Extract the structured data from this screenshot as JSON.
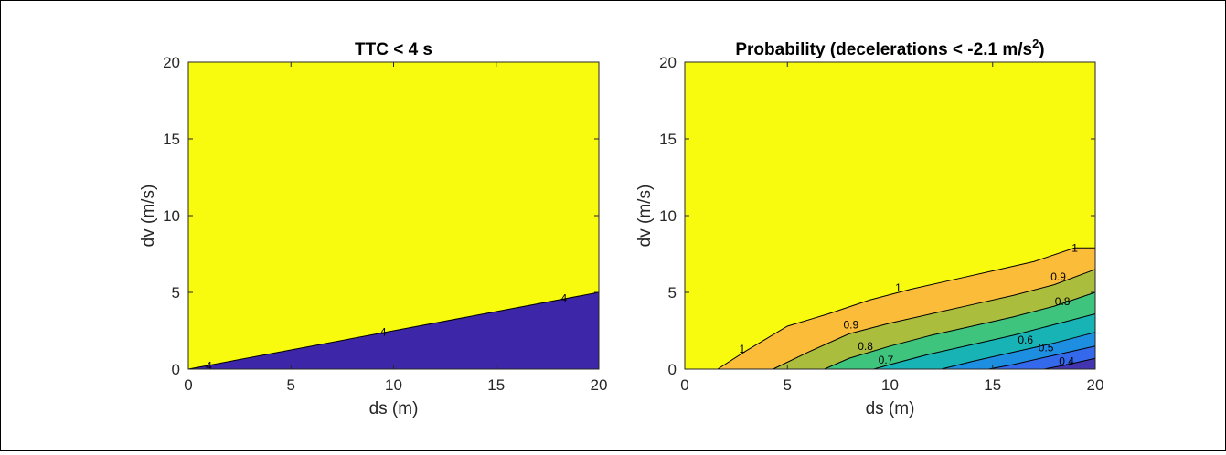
{
  "chart_data": [
    {
      "type": "contour",
      "title": "TTC < 4 s",
      "xlabel": "ds (m)",
      "ylabel": "dv (m/s)",
      "xlim": [
        0,
        20
      ],
      "ylim": [
        0,
        20
      ],
      "xticks": [
        0,
        5,
        10,
        15,
        20
      ],
      "yticks": [
        0,
        5,
        10,
        15,
        20
      ],
      "colors": {
        "region_above": "#f9fb0e",
        "region_below": "#3e26a8"
      },
      "boundary": {
        "x": [
          0,
          20
        ],
        "y": [
          0,
          5
        ]
      },
      "contour_labels": [
        {
          "text": "4",
          "x": 1.0,
          "y": 0.2
        },
        {
          "text": "4",
          "x": 9.5,
          "y": 2.4
        },
        {
          "text": "4",
          "x": 18.3,
          "y": 4.6
        }
      ]
    },
    {
      "type": "contour",
      "title_main": "Probability (decelerations < -2.1 m/s",
      "title_sup": "2",
      "title_end": ")",
      "xlabel": "ds (m)",
      "ylabel": "dv (m/s)",
      "xlim": [
        0,
        20
      ],
      "ylim": [
        0,
        20
      ],
      "xticks": [
        0,
        5,
        10,
        15,
        20
      ],
      "yticks": [
        0,
        5,
        10,
        15,
        20
      ],
      "background_color": "#f9fb0e",
      "levels": [
        {
          "value": 1.0,
          "color": "#fbbc3a",
          "x": [
            1.6,
            3,
            5,
            7,
            9,
            11,
            13,
            15,
            17,
            19,
            20
          ],
          "y": [
            0,
            1.2,
            2.8,
            3.6,
            4.5,
            5.2,
            5.8,
            6.4,
            7.0,
            7.9,
            7.9
          ]
        },
        {
          "value": 0.9,
          "color": "#abbd3c",
          "x": [
            4.3,
            6,
            8,
            10,
            12,
            14,
            16,
            18,
            20
          ],
          "y": [
            0,
            1.1,
            2.3,
            3.0,
            3.6,
            4.2,
            4.8,
            5.5,
            6.5
          ]
        },
        {
          "value": 0.8,
          "color": "#3fc47e",
          "x": [
            6.8,
            8,
            10,
            12,
            14,
            16,
            18,
            20
          ],
          "y": [
            0,
            0.7,
            1.5,
            2.2,
            2.8,
            3.4,
            4.1,
            5.0
          ]
        },
        {
          "value": 0.7,
          "color": "#17b3b5",
          "x": [
            9.2,
            10,
            12,
            14,
            16,
            18,
            20
          ],
          "y": [
            0,
            0.3,
            1.0,
            1.6,
            2.2,
            2.9,
            3.6
          ]
        },
        {
          "value": 0.6,
          "color": "#1e8fe0",
          "x": [
            12.5,
            14,
            16,
            18,
            20
          ],
          "y": [
            0,
            0.5,
            1.1,
            1.7,
            2.4
          ]
        },
        {
          "value": 0.5,
          "color": "#3569ec",
          "x": [
            14.8,
            16,
            18,
            20
          ],
          "y": [
            0,
            0.3,
            0.9,
            1.5
          ]
        },
        {
          "value": 0.4,
          "color": "#4335b0",
          "x": [
            17.5,
            18.5,
            20
          ],
          "y": [
            0,
            0.25,
            0.7
          ]
        }
      ],
      "contour_labels": [
        {
          "text": "1",
          "x": 19.0,
          "y": 7.9
        },
        {
          "text": "1",
          "x": 10.4,
          "y": 5.3
        },
        {
          "text": "1",
          "x": 2.8,
          "y": 1.3
        },
        {
          "text": "0.9",
          "x": 18.2,
          "y": 6.0
        },
        {
          "text": "0.9",
          "x": 8.1,
          "y": 2.9
        },
        {
          "text": "0.8",
          "x": 18.4,
          "y": 4.4
        },
        {
          "text": "0.8",
          "x": 8.8,
          "y": 1.5
        },
        {
          "text": "0.7",
          "x": 9.8,
          "y": 0.6
        },
        {
          "text": "0.6",
          "x": 16.6,
          "y": 1.9
        },
        {
          "text": "0.5",
          "x": 17.6,
          "y": 1.4
        },
        {
          "text": "0.4",
          "x": 18.6,
          "y": 0.5
        }
      ]
    }
  ]
}
